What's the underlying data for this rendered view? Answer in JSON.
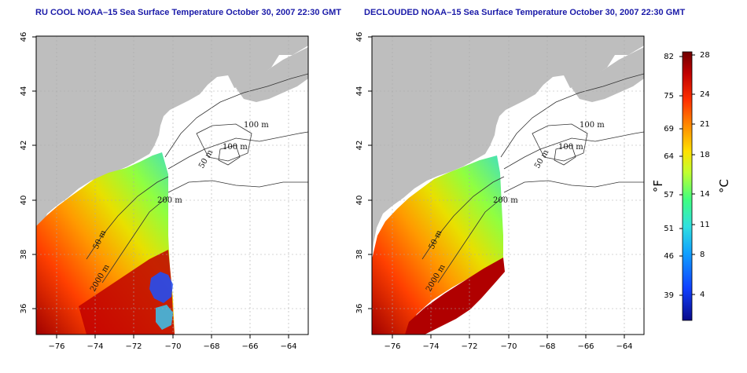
{
  "titles": {
    "left": "RU COOL NOAA–15 Sea Surface Temperature October 30, 2007 22:30 GMT",
    "right": "DECLOUDED NOAA–15 Sea Surface Temperature October 30, 2007 22:30 GMT"
  },
  "axes": {
    "x_ticks": [
      "−76",
      "−74",
      "−72",
      "−70",
      "−68",
      "−66",
      "−64"
    ],
    "y_ticks": [
      "46",
      "44",
      "42",
      "40",
      "38",
      "36"
    ]
  },
  "contour_labels": {
    "left": [
      "100 m",
      "100 m",
      "50 m",
      "200 m",
      "50 m",
      "2000 m"
    ],
    "right": [
      "100 m",
      "100 m",
      "50 m",
      "200 m",
      "50 m",
      "2000 m"
    ]
  },
  "colorbar": {
    "fahrenheit": [
      "82",
      "75",
      "69",
      "64",
      "57",
      "51",
      "46",
      "39"
    ],
    "celsius": [
      "28",
      "24",
      "21",
      "18",
      "14",
      "11",
      "8",
      "4"
    ],
    "unit_f": "°F",
    "unit_c": "°C",
    "colors": [
      "#0a0a8a",
      "#1040ff",
      "#10a0ff",
      "#30e0e0",
      "#40ff80",
      "#c0ff30",
      "#ffe000",
      "#ff9000",
      "#ff3000",
      "#c00000",
      "#700000"
    ]
  }
}
